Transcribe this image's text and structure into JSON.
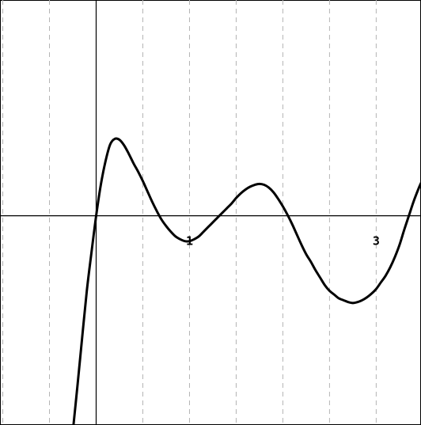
{
  "chart_data": {
    "type": "line",
    "title": "",
    "xlabel": "",
    "ylabel": "",
    "xlim": [
      -1.03,
      3.48
    ],
    "ylim": [
      -2.23,
      2.3
    ],
    "grid": {
      "x": true,
      "y": false,
      "style": "dashed",
      "x_step": 0.5
    },
    "x_tick_labels": [
      {
        "value": 1,
        "label": "1"
      },
      {
        "value": 3,
        "label": "3"
      }
    ],
    "series": [
      {
        "color": "#000000",
        "x": [
          -0.25,
          -0.2,
          -0.15,
          -0.1,
          -0.05,
          0.0,
          0.05,
          0.1,
          0.15,
          0.2,
          0.25,
          0.3,
          0.35,
          0.4,
          0.45,
          0.5,
          0.55,
          0.6,
          0.65,
          0.7,
          0.75,
          0.8,
          0.85,
          0.9,
          0.95,
          1.0,
          1.05,
          1.1,
          1.15,
          1.2,
          1.25,
          1.3,
          1.35,
          1.4,
          1.45,
          1.5,
          1.55,
          1.6,
          1.65,
          1.7,
          1.75,
          1.8,
          1.85,
          1.9,
          1.95,
          2.0,
          2.05,
          2.1,
          2.15,
          2.2,
          2.25,
          2.3,
          2.35,
          2.4,
          2.45,
          2.5,
          2.55,
          2.6,
          2.65,
          2.7,
          2.75,
          2.8,
          2.85,
          2.9,
          2.95,
          3.0,
          3.05,
          3.1,
          3.15,
          3.2,
          3.25,
          3.3,
          3.35,
          3.4,
          3.45,
          3.48
        ],
        "y": [
          -2.3,
          -1.81,
          -1.3,
          -0.8,
          -0.39,
          0.0,
          0.33,
          0.58,
          0.76,
          0.82,
          0.81,
          0.75,
          0.66,
          0.56,
          0.47,
          0.37,
          0.26,
          0.15,
          0.05,
          -0.04,
          -0.11,
          -0.17,
          -0.22,
          -0.25,
          -0.27,
          -0.27,
          -0.25,
          -0.22,
          -0.17,
          -0.12,
          -0.07,
          -0.02,
          0.03,
          0.08,
          0.13,
          0.19,
          0.24,
          0.28,
          0.31,
          0.33,
          0.34,
          0.33,
          0.3,
          0.25,
          0.18,
          0.1,
          0.01,
          -0.09,
          -0.2,
          -0.31,
          -0.41,
          -0.49,
          -0.58,
          -0.66,
          -0.74,
          -0.8,
          -0.84,
          -0.88,
          -0.9,
          -0.92,
          -0.93,
          -0.92,
          -0.9,
          -0.87,
          -0.83,
          -0.78,
          -0.71,
          -0.64,
          -0.55,
          -0.44,
          -0.31,
          -0.15,
          0.0,
          0.15,
          0.28,
          0.35
        ]
      }
    ]
  }
}
